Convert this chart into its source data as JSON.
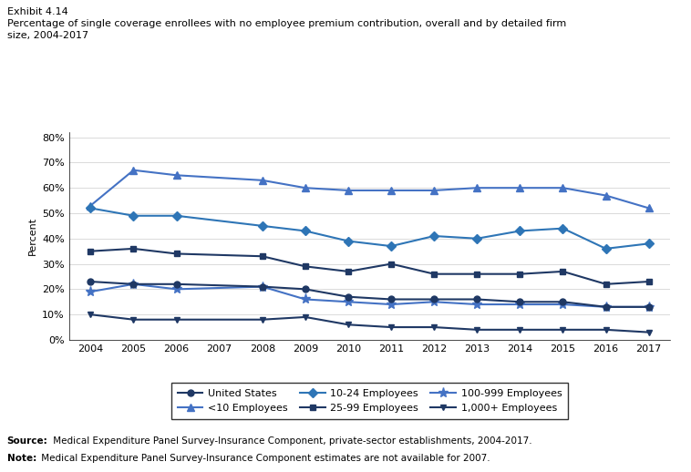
{
  "title_line1": "Exhibit 4.14",
  "title_line2": "Percentage of single coverage enrollees with no employee premium contribution, overall and by detailed firm\nsize, 2004-2017",
  "ylabel": "Percent",
  "years": [
    2004,
    2005,
    2006,
    2008,
    2009,
    2010,
    2011,
    2012,
    2013,
    2014,
    2015,
    2016,
    2017
  ],
  "series": {
    "United States": {
      "values": [
        23,
        22,
        22,
        21,
        20,
        17,
        16,
        16,
        16,
        15,
        15,
        13,
        13
      ],
      "color": "#1f3864",
      "marker": "o",
      "markersize": 5,
      "linewidth": 1.5,
      "label": "United States",
      "zorder": 3
    },
    "<10 Employees": {
      "values": [
        53,
        67,
        65,
        63,
        60,
        59,
        59,
        59,
        60,
        60,
        60,
        57,
        52
      ],
      "color": "#4472c4",
      "marker": "^",
      "markersize": 6,
      "linewidth": 1.5,
      "label": "<10 Employees",
      "zorder": 2
    },
    "10-24 Employees": {
      "values": [
        52,
        49,
        49,
        45,
        43,
        39,
        37,
        41,
        40,
        43,
        44,
        36,
        38
      ],
      "color": "#2e75b6",
      "marker": "D",
      "markersize": 5,
      "linewidth": 1.5,
      "label": "10-24 Employees",
      "zorder": 2
    },
    "25-99 Employees": {
      "values": [
        35,
        36,
        34,
        33,
        29,
        27,
        30,
        26,
        26,
        26,
        27,
        22,
        23
      ],
      "color": "#1f3864",
      "marker": "s",
      "markersize": 5,
      "linewidth": 1.5,
      "label": "25-99 Employees",
      "zorder": 3
    },
    "100-999 Employees": {
      "values": [
        19,
        22,
        20,
        21,
        16,
        15,
        14,
        15,
        14,
        14,
        14,
        13,
        13
      ],
      "color": "#4472c4",
      "marker": "*",
      "markersize": 8,
      "linewidth": 1.5,
      "label": "100-999 Employees",
      "zorder": 2
    },
    "1,000+ Employees": {
      "values": [
        10,
        8,
        8,
        8,
        9,
        6,
        5,
        5,
        4,
        4,
        4,
        4,
        3
      ],
      "color": "#1f3864",
      "marker": "v",
      "markersize": 5,
      "linewidth": 1.5,
      "label": "1,000+ Employees",
      "zorder": 3
    }
  },
  "yticks": [
    0,
    10,
    20,
    30,
    40,
    50,
    60,
    70,
    80
  ],
  "ylim": [
    0,
    82
  ],
  "source_bold": "Source:",
  "source_rest": " Medical Expenditure Panel Survey-Insurance Component, private-sector establishments, 2004-2017.",
  "note_bold": "Note:",
  "note_rest": " Medical Expenditure Panel Survey-Insurance Component estimates are not available for 2007.",
  "grid_color": "#cccccc",
  "legend_order": [
    "United States",
    "<10 Employees",
    "10-24 Employees",
    "25-99 Employees",
    "100-999 Employees",
    "1,000+ Employees"
  ]
}
